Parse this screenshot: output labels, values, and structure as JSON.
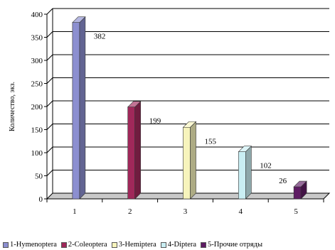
{
  "chart_data": {
    "type": "bar",
    "categories": [
      "1",
      "2",
      "3",
      "4",
      "5"
    ],
    "values": [
      382,
      199,
      155,
      102,
      26
    ],
    "data_labels": [
      "382",
      "199",
      "155",
      "102",
      "26"
    ],
    "ylabel": "Количество, экз.",
    "xlabel": "",
    "ylim": [
      0,
      400
    ],
    "yticks": [
      "0",
      "50",
      "100",
      "150",
      "200",
      "250",
      "300",
      "350",
      "400"
    ],
    "grid": true,
    "style": "3d-column",
    "legend_position": "bottom",
    "legend": [
      {
        "label": "1-Hymenoptera",
        "color": "#8c8fd0"
      },
      {
        "label": "2-Coleoptera",
        "color": "#a0285a"
      },
      {
        "label": "3-Hemiptera",
        "color": "#f7f4bc"
      },
      {
        "label": "4-Diptera",
        "color": "#c9eef3"
      },
      {
        "label": "5-Прочие отряды",
        "color": "#5e1b63"
      }
    ]
  }
}
